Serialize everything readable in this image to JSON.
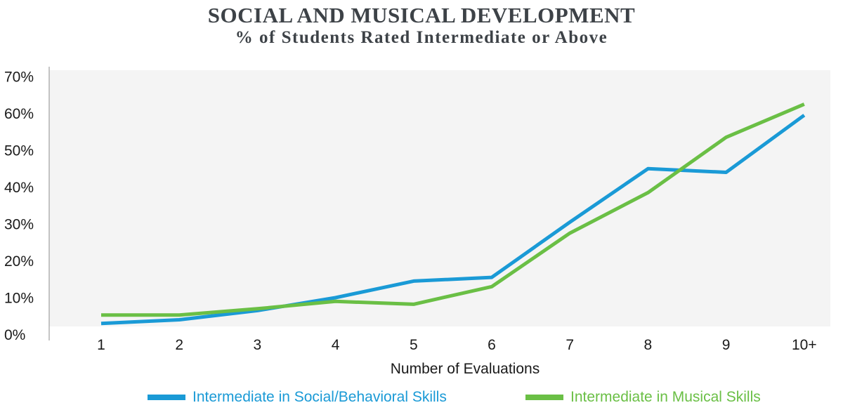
{
  "chart_data": {
    "type": "line",
    "title": "SOCIAL AND MUSICAL DEVELOPMENT",
    "subtitle": "% of Students Rated Intermediate or Above",
    "xlabel": "Number of Evaluations",
    "ylabel": "",
    "categories": [
      "1",
      "2",
      "3",
      "4",
      "5",
      "6",
      "7",
      "8",
      "9",
      "10+"
    ],
    "yticks": [
      "0%",
      "10%",
      "20%",
      "30%",
      "40%",
      "50%",
      "60%",
      "70%"
    ],
    "ylim": [
      0,
      70
    ],
    "series": [
      {
        "name": "Intermediate in Social/Behavioral Skills",
        "color": "#1a9ad6",
        "values": [
          1,
          2,
          4.5,
          8,
          12.5,
          13.5,
          28.5,
          43,
          42,
          57.5
        ]
      },
      {
        "name": "Intermediate in Musical Skills",
        "color": "#6abf45",
        "values": [
          3.3,
          3.3,
          5,
          7,
          6.2,
          11,
          25.5,
          36.5,
          51.5,
          60.5
        ]
      }
    ],
    "legend_position": "bottom"
  }
}
